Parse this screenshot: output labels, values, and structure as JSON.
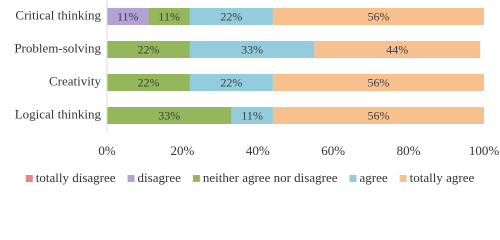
{
  "chart_data": {
    "type": "stacked-barh",
    "categories": [
      "Critical thinking",
      "Problem-solving",
      "Creativity",
      "Logical thinking"
    ],
    "series": [
      {
        "name": "totally disagree",
        "color": "#e6868a",
        "values": [
          0,
          0,
          0,
          0
        ],
        "value_labels": [
          null,
          null,
          null,
          null
        ]
      },
      {
        "name": "disagree",
        "color": "#b3a2d6",
        "values": [
          11,
          0,
          0,
          0
        ],
        "value_labels": [
          "11%",
          null,
          null,
          null
        ]
      },
      {
        "name": "neither agree nor disagree",
        "color": "#93b75a",
        "values": [
          11,
          22,
          22,
          33
        ],
        "value_labels": [
          "11%",
          "22%",
          "22%",
          "33%"
        ]
      },
      {
        "name": "agree",
        "color": "#93cddd",
        "values": [
          22,
          33,
          22,
          11
        ],
        "value_labels": [
          "22%",
          "33%",
          "22%",
          "11%"
        ]
      },
      {
        "name": "totally agree",
        "color": "#f9c08f",
        "values": [
          56,
          44,
          56,
          56
        ],
        "value_labels": [
          "56%",
          "44%",
          "56%",
          "56%"
        ]
      }
    ],
    "xlim": [
      0,
      100
    ],
    "xticks": [
      {
        "value": 0,
        "label": "0%"
      },
      {
        "value": 20,
        "label": "20%"
      },
      {
        "value": 40,
        "label": "40%"
      },
      {
        "value": 60,
        "label": "60%"
      },
      {
        "value": 80,
        "label": "80%"
      },
      {
        "value": 100,
        "label": "100%"
      }
    ],
    "legend": "bottom"
  }
}
